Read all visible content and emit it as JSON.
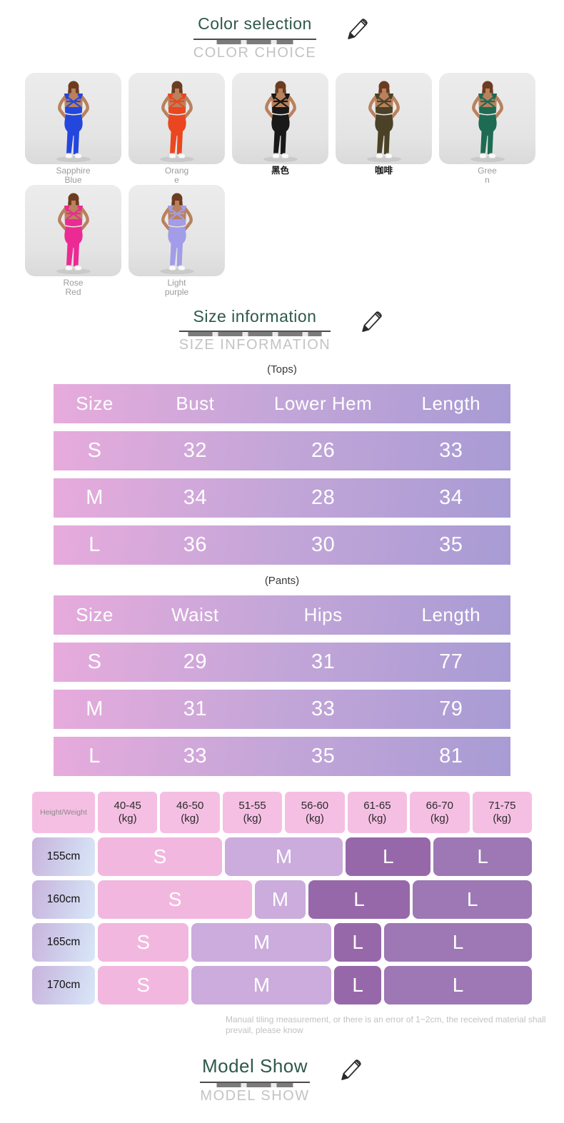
{
  "sections": {
    "color": {
      "title": "Color selection",
      "subtitle": "COLOR CHOICE"
    },
    "size": {
      "title": "Size information",
      "subtitle": "SIZE INFORMATION"
    },
    "model": {
      "title": "Model Show",
      "subtitle": "MODEL SHOW"
    }
  },
  "theme": {
    "title_green": "#2e5948",
    "subtitle_gray": "#c3c3c3",
    "table_gradient_left": "#e7abdc",
    "table_gradient_right": "#a89bd4",
    "matrix_header_pink": "#f5bfe3",
    "matrix_s_pink": "#f2b7df",
    "matrix_m_lavender": "#cbacdc",
    "matrix_l_dark": "#9768a9",
    "matrix_l_medium": "#9d78b4"
  },
  "color_options": {
    "rows": [
      [
        {
          "label": "Sapphire\nBlue",
          "lang": "en",
          "outfit": "#2347dd"
        },
        {
          "label": "Orang\ne",
          "lang": "en",
          "outfit": "#ea4720"
        },
        {
          "label": "黑色",
          "lang": "zh",
          "outfit": "#191919"
        },
        {
          "label": "咖啡",
          "lang": "zh",
          "outfit": "#4a4127"
        },
        {
          "label": "Gree\nn",
          "lang": "en",
          "outfit": "#1d6b52"
        }
      ],
      [
        {
          "label": "Rose\nRed",
          "lang": "en",
          "outfit": "#ec2a94"
        },
        {
          "label": "Light\npurple",
          "lang": "en",
          "outfit": "#a29ce9"
        }
      ]
    ]
  },
  "chart_data": [
    {
      "type": "table",
      "title": "(Tops)",
      "headers": [
        "Size",
        "Bust",
        "Lower Hem",
        "Length"
      ],
      "rows": [
        [
          "S",
          "32",
          "26",
          "33"
        ],
        [
          "M",
          "34",
          "28",
          "34"
        ],
        [
          "L",
          "36",
          "30",
          "35"
        ]
      ]
    },
    {
      "type": "table",
      "title": "(Pants)",
      "headers": [
        "Size",
        "Waist",
        "Hips",
        "Length"
      ],
      "rows": [
        [
          "S",
          "29",
          "31",
          "77"
        ],
        [
          "M",
          "31",
          "33",
          "79"
        ],
        [
          "L",
          "33",
          "35",
          "81"
        ]
      ]
    },
    {
      "type": "heatmap",
      "title": "Height/Weight size matrix",
      "corner": "Height/Weight",
      "columns": [
        "40-45\n(kg)",
        "46-50\n(kg)",
        "51-55\n(kg)",
        "56-60\n(kg)",
        "61-65\n(kg)",
        "66-70\n(kg)",
        "71-75\n(kg)"
      ],
      "rows": [
        {
          "label": "155cm",
          "cells": [
            {
              "text": "S",
              "grow": 29.2,
              "color": "s"
            },
            {
              "text": "M",
              "grow": 27.7,
              "color": "m"
            },
            {
              "text": "L",
              "grow": 20.0,
              "color": "l1"
            },
            {
              "text": "L",
              "grow": 23.1,
              "color": "l2"
            }
          ]
        },
        {
          "label": "160cm",
          "cells": [
            {
              "text": "S",
              "grow": 35.3,
              "color": "s"
            },
            {
              "text": "M",
              "grow": 11.5,
              "color": "m"
            },
            {
              "text": "L",
              "grow": 23.3,
              "color": "l1"
            },
            {
              "text": "L",
              "grow": 27.2,
              "color": "l2"
            }
          ]
        },
        {
          "label": "165cm",
          "cells": [
            {
              "text": "S",
              "grow": 20.8,
              "color": "s"
            },
            {
              "text": "M",
              "grow": 32.0,
              "color": "m"
            },
            {
              "text": "L",
              "grow": 10.7,
              "color": "l1"
            },
            {
              "text": "L",
              "grow": 33.8,
              "color": "l2"
            }
          ]
        },
        {
          "label": "170cm",
          "cells": [
            {
              "text": "S",
              "grow": 20.8,
              "color": "s"
            },
            {
              "text": "M",
              "grow": 32.0,
              "color": "m"
            },
            {
              "text": "L",
              "grow": 10.7,
              "color": "l1"
            },
            {
              "text": "L",
              "grow": 33.8,
              "color": "l2"
            }
          ]
        }
      ]
    }
  ],
  "note": "Manual tiling measurement, or there is an error of 1~2cm, the received material shall prevail, please know"
}
